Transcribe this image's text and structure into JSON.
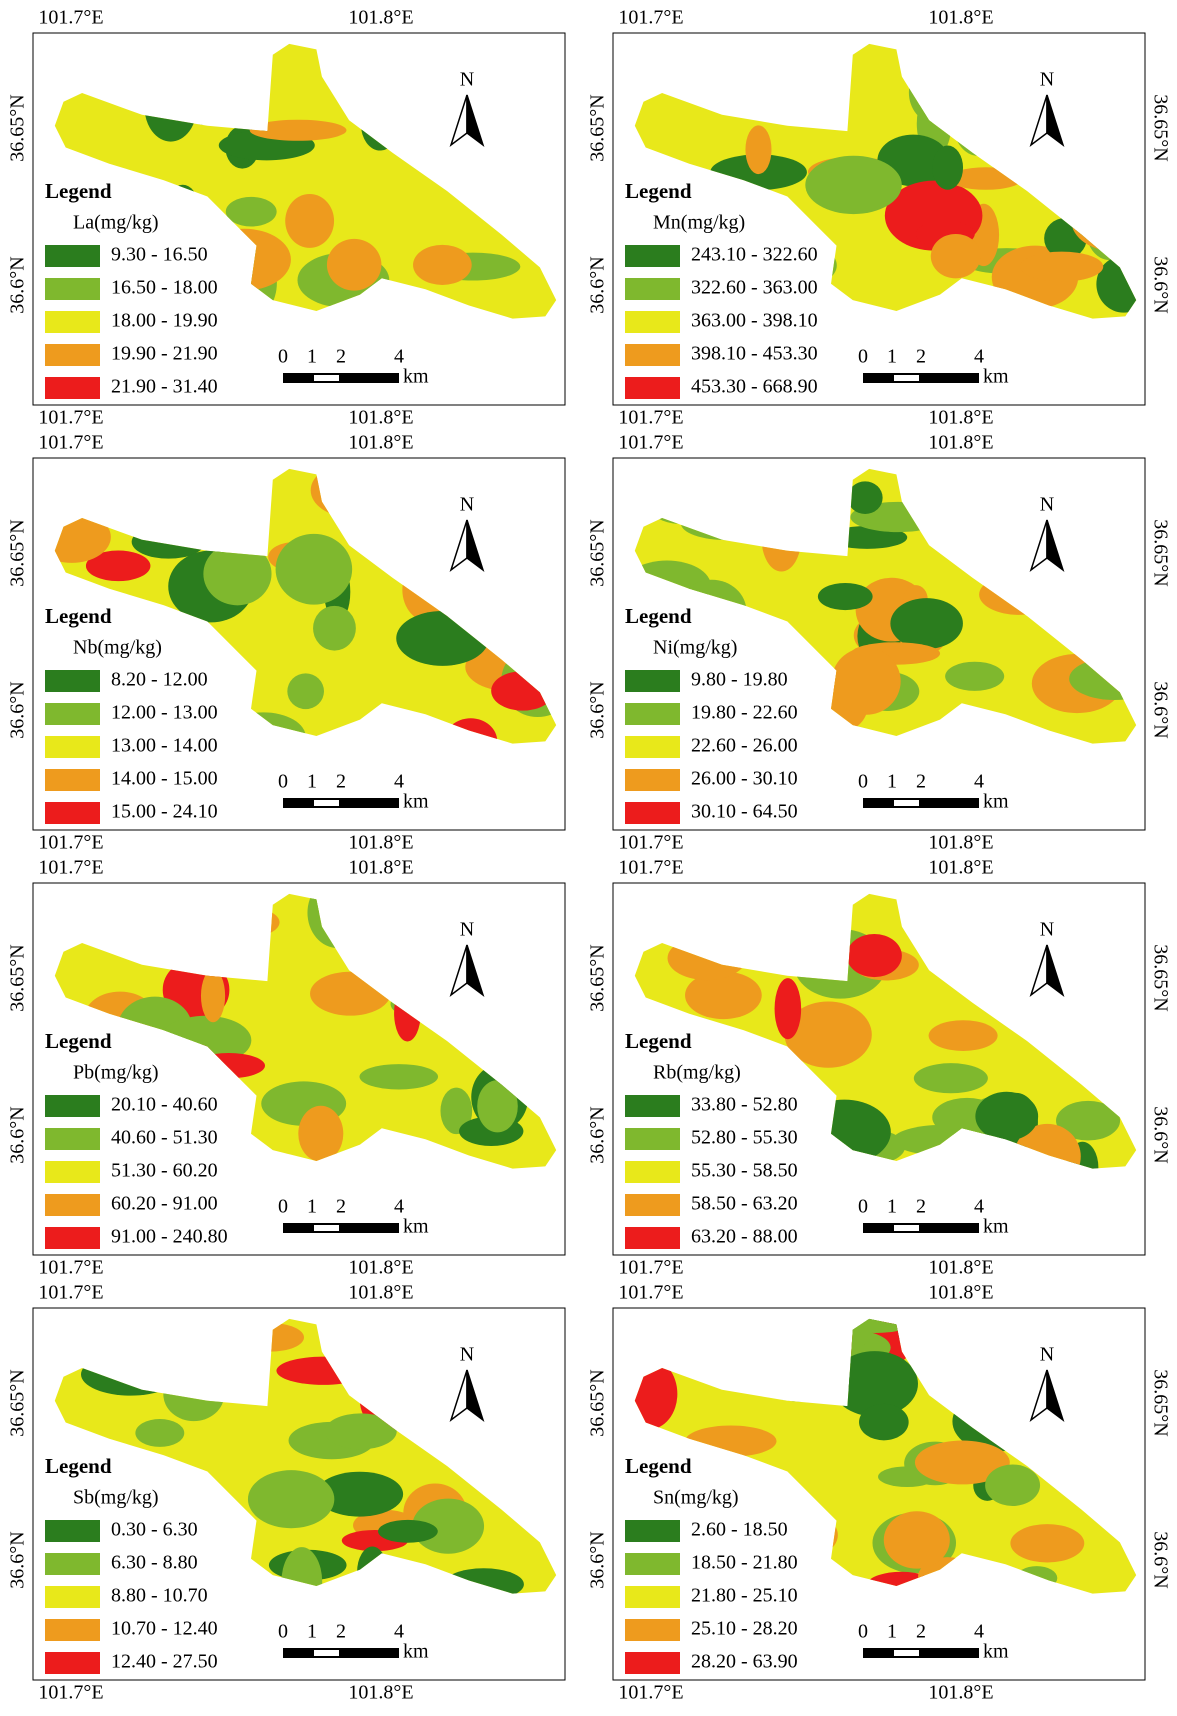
{
  "legend_title": "Legend",
  "north": "N",
  "scale_labels": [
    "0",
    "1",
    "2",
    "4"
  ],
  "scale_unit": "km",
  "lon_labels": [
    "101.7°E",
    "101.8°E"
  ],
  "lat_labels": [
    "36.65°N",
    "36.6°N"
  ],
  "class_colors": [
    "#2b7d1e",
    "#7fb82e",
    "#e8e81a",
    "#ee9b1e",
    "#ec1c1c"
  ],
  "panels": [
    {
      "variable": "La(mg/kg)",
      "classes": [
        "9.30 - 16.50",
        "16.50 - 18.00",
        "18.00 - 19.90",
        "19.90 - 21.90",
        "21.90 - 31.40"
      ]
    },
    {
      "variable": "Mn(mg/kg)",
      "classes": [
        "243.10 - 322.60",
        "322.60 - 363.00",
        "363.00 - 398.10",
        "398.10 - 453.30",
        "453.30 - 668.90"
      ]
    },
    {
      "variable": "Nb(mg/kg)",
      "classes": [
        "8.20 - 12.00",
        "12.00 - 13.00",
        "13.00 - 14.00",
        "14.00 - 15.00",
        "15.00 - 24.10"
      ]
    },
    {
      "variable": "Ni(mg/kg)",
      "classes": [
        "9.80 - 19.80",
        "19.80 - 22.60",
        "22.60 - 26.00",
        "26.00 - 30.10",
        "30.10 - 64.50"
      ]
    },
    {
      "variable": "Pb(mg/kg)",
      "classes": [
        "20.10 - 40.60",
        "40.60 - 51.30",
        "51.30 - 60.20",
        "60.20 - 91.00",
        "91.00 - 240.80"
      ]
    },
    {
      "variable": "Rb(mg/kg)",
      "classes": [
        "33.80 - 52.80",
        "52.80 - 55.30",
        "55.30 - 58.50",
        "58.50 - 63.20",
        "63.20 - 88.00"
      ]
    },
    {
      "variable": "Sb(mg/kg)",
      "classes": [
        "0.30 - 6.30",
        "6.30 - 8.80",
        "8.80 - 10.70",
        "10.70 - 12.40",
        "12.40 - 27.50"
      ]
    },
    {
      "variable": "Sn(mg/kg)",
      "classes": [
        "2.60 - 18.50",
        "18.50 - 21.80",
        "21.80 - 25.10",
        "25.10 - 28.20",
        "28.20 - 63.90"
      ]
    }
  ]
}
